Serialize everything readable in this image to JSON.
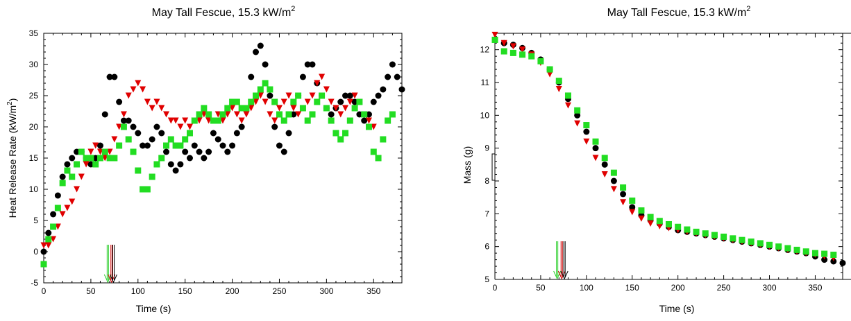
{
  "colors": {
    "series_black": "#000000",
    "series_red": "#e00000",
    "series_green": "#22dd22",
    "arrow_black": "#000000",
    "arrow_red": "#cc0000",
    "arrow_green": "#22cc22"
  },
  "chart_data": [
    {
      "type": "scatter",
      "title": "May Tall Fescue, 15.3 kW/m",
      "title_sup": "2",
      "xlabel": "Time (s)",
      "ylabel": "Heat Release Rate (kW/m",
      "ylabel_sup": "2",
      "ylabel_tail": ")",
      "xlim": [
        0,
        380
      ],
      "ylim": [
        -5,
        35
      ],
      "x_ticks": [
        0,
        50,
        100,
        150,
        200,
        250,
        300,
        350
      ],
      "y_ticks": [
        -5,
        0,
        5,
        10,
        15,
        20,
        25,
        30,
        35
      ],
      "grid": false,
      "legend": "none",
      "arrows": [
        {
          "color": "green",
          "x": 68
        },
        {
          "color": "red",
          "x": 72
        },
        {
          "color": "black",
          "x": 74
        }
      ],
      "series": [
        {
          "marker": "circle",
          "color": "black",
          "x": [
            0,
            5,
            10,
            15,
            20,
            25,
            30,
            35,
            40,
            45,
            50,
            55,
            60,
            65,
            70,
            75,
            80,
            85,
            90,
            95,
            100,
            105,
            110,
            115,
            120,
            125,
            130,
            135,
            140,
            145,
            150,
            155,
            160,
            165,
            170,
            175,
            180,
            185,
            190,
            195,
            200,
            205,
            210,
            215,
            220,
            225,
            230,
            235,
            240,
            245,
            250,
            255,
            260,
            265,
            270,
            275,
            280,
            285,
            290,
            295,
            300,
            305,
            310,
            315,
            320,
            325,
            330,
            335,
            340,
            345,
            350,
            355,
            360,
            365,
            370,
            375,
            380
          ],
          "y": [
            0,
            3,
            6,
            9,
            12,
            14,
            15,
            16,
            16,
            15,
            14,
            15,
            17,
            22,
            28,
            28,
            24,
            21,
            21,
            20,
            19,
            17,
            17,
            18,
            20,
            19,
            16,
            14,
            13,
            14,
            16,
            15,
            17,
            16,
            15,
            16,
            19,
            18,
            17,
            16,
            17,
            19,
            20,
            23,
            28,
            32,
            33,
            30,
            25,
            20,
            17,
            16,
            19,
            22,
            25,
            28,
            30,
            30,
            27,
            25,
            23,
            22,
            23,
            24,
            25,
            25,
            24,
            22,
            21,
            22,
            24,
            25,
            26,
            28,
            30,
            28,
            26
          ]
        },
        {
          "marker": "triangle-down",
          "color": "red",
          "x": [
            0,
            5,
            10,
            15,
            20,
            25,
            30,
            35,
            40,
            45,
            50,
            55,
            60,
            65,
            70,
            75,
            80,
            85,
            90,
            95,
            100,
            105,
            110,
            115,
            120,
            125,
            130,
            135,
            140,
            145,
            150,
            155,
            160,
            165,
            170,
            175,
            180,
            185,
            190,
            195,
            200,
            205,
            210,
            215,
            220,
            225,
            230,
            235,
            240,
            245,
            250,
            255,
            260,
            265,
            270,
            275,
            280,
            285,
            290,
            295,
            300,
            305,
            310,
            315,
            320,
            325,
            330,
            335,
            340,
            345,
            350
          ],
          "y": [
            1,
            1,
            2,
            4,
            6,
            7,
            8,
            10,
            12,
            14,
            16,
            17,
            16,
            15,
            16,
            18,
            20,
            22,
            25,
            26,
            27,
            26,
            24,
            23,
            24,
            23,
            22,
            21,
            21,
            20,
            21,
            20,
            21,
            21,
            22,
            21,
            21,
            22,
            21,
            22,
            23,
            22,
            21,
            22,
            23,
            24,
            25,
            24,
            22,
            21,
            23,
            24,
            25,
            23,
            22,
            23,
            24,
            25,
            27,
            28,
            26,
            24,
            23,
            22,
            23,
            24,
            25,
            24,
            22,
            21,
            20
          ]
        },
        {
          "marker": "square",
          "color": "green",
          "x": [
            0,
            5,
            10,
            15,
            20,
            25,
            30,
            35,
            40,
            45,
            50,
            55,
            60,
            65,
            70,
            75,
            80,
            85,
            90,
            95,
            100,
            105,
            110,
            115,
            120,
            125,
            130,
            135,
            140,
            145,
            150,
            155,
            160,
            165,
            170,
            175,
            180,
            185,
            190,
            195,
            200,
            205,
            210,
            215,
            220,
            225,
            230,
            235,
            240,
            245,
            250,
            255,
            260,
            265,
            270,
            275,
            280,
            285,
            290,
            295,
            300,
            305,
            310,
            315,
            320,
            325,
            330,
            335,
            340,
            345,
            350,
            355,
            360,
            365,
            370
          ],
          "y": [
            -2,
            2,
            4,
            7,
            11,
            13,
            12,
            14,
            16,
            15,
            15,
            14,
            15,
            16,
            15,
            15,
            17,
            20,
            18,
            16,
            13,
            10,
            10,
            12,
            14,
            15,
            17,
            18,
            17,
            17,
            18,
            19,
            21,
            22,
            23,
            22,
            21,
            21,
            22,
            23,
            24,
            24,
            23,
            23,
            24,
            25,
            26,
            27,
            26,
            24,
            22,
            21,
            22,
            24,
            25,
            23,
            21,
            22,
            24,
            25,
            23,
            21,
            19,
            18,
            19,
            21,
            23,
            24,
            22,
            20,
            16,
            15,
            18,
            21,
            22
          ]
        }
      ]
    },
    {
      "type": "scatter",
      "title": "May Tall Fescue, 15.3 kW/m",
      "title_sup": "2",
      "xlabel": "Time (s)",
      "ylabel": "Mass (g)",
      "xlim": [
        0,
        380
      ],
      "ylim": [
        5,
        12.5
      ],
      "x_ticks": [
        0,
        50,
        100,
        150,
        200,
        250,
        300,
        350
      ],
      "y_ticks": [
        5,
        6,
        7,
        8,
        9,
        10,
        11,
        12
      ],
      "grid": false,
      "legend": "none",
      "arrows": [
        {
          "color": "green",
          "x": 68
        },
        {
          "color": "red",
          "x": 73
        },
        {
          "color": "black",
          "x": 76
        }
      ],
      "series": [
        {
          "marker": "circle",
          "color": "black",
          "x": [
            0,
            10,
            20,
            30,
            40,
            50,
            60,
            70,
            80,
            90,
            100,
            110,
            120,
            130,
            140,
            150,
            160,
            170,
            180,
            190,
            200,
            210,
            220,
            230,
            240,
            250,
            260,
            270,
            280,
            290,
            300,
            310,
            320,
            330,
            340,
            350,
            360,
            370,
            380
          ],
          "y": [
            12.3,
            12.2,
            12.15,
            12.05,
            11.9,
            11.7,
            11.4,
            11.0,
            10.5,
            10.0,
            9.5,
            9.0,
            8.5,
            8.0,
            7.6,
            7.2,
            6.95,
            6.8,
            6.7,
            6.6,
            6.5,
            6.45,
            6.4,
            6.35,
            6.3,
            6.25,
            6.2,
            6.15,
            6.1,
            6.05,
            6.0,
            5.95,
            5.9,
            5.85,
            5.8,
            5.7,
            5.6,
            5.55,
            5.5
          ]
        },
        {
          "marker": "triangle-down",
          "color": "red",
          "x": [
            0,
            10,
            20,
            30,
            40,
            50,
            60,
            70,
            80,
            90,
            100,
            110,
            120,
            130,
            140,
            150,
            160,
            170,
            180,
            190,
            200,
            210,
            220,
            230,
            240,
            250,
            260,
            270,
            280,
            290,
            300,
            310,
            320,
            330,
            340,
            350,
            360,
            370
          ],
          "y": [
            12.45,
            12.2,
            12.1,
            12.0,
            11.85,
            11.6,
            11.25,
            10.8,
            10.3,
            9.75,
            9.2,
            8.7,
            8.2,
            7.75,
            7.35,
            7.05,
            6.85,
            6.7,
            6.62,
            6.56,
            6.5,
            6.45,
            6.4,
            6.35,
            6.3,
            6.25,
            6.2,
            6.15,
            6.1,
            6.05,
            6.0,
            5.95,
            5.9,
            5.85,
            5.8,
            5.75,
            5.7,
            5.65
          ]
        },
        {
          "marker": "square",
          "color": "green",
          "x": [
            0,
            10,
            20,
            30,
            40,
            50,
            60,
            70,
            80,
            90,
            100,
            110,
            120,
            130,
            140,
            150,
            160,
            170,
            180,
            190,
            200,
            210,
            220,
            230,
            240,
            250,
            260,
            270,
            280,
            290,
            300,
            310,
            320,
            330,
            340,
            350,
            360,
            370
          ],
          "y": [
            12.3,
            11.95,
            11.9,
            11.85,
            11.8,
            11.65,
            11.4,
            11.05,
            10.6,
            10.15,
            9.7,
            9.2,
            8.7,
            8.25,
            7.8,
            7.4,
            7.1,
            6.9,
            6.78,
            6.68,
            6.6,
            6.52,
            6.45,
            6.4,
            6.35,
            6.3,
            6.25,
            6.2,
            6.15,
            6.1,
            6.05,
            6.0,
            5.95,
            5.9,
            5.85,
            5.8,
            5.78,
            5.75
          ]
        }
      ]
    }
  ]
}
